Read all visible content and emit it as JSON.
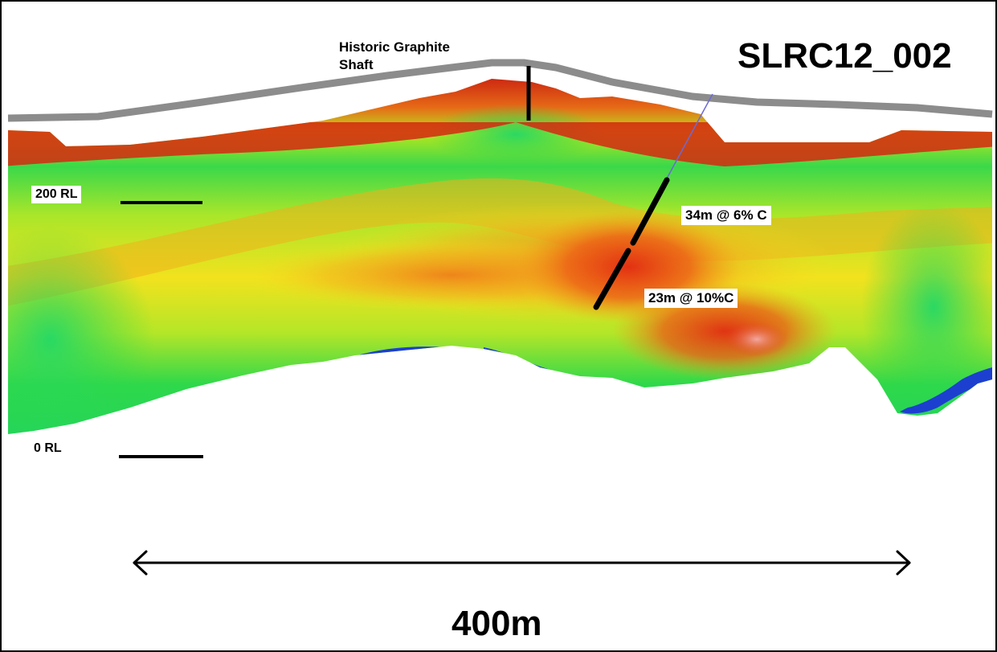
{
  "title": "SLRC12_002",
  "shaft_label_line1": "Historic Graphite",
  "shaft_label_line2": "Shaft",
  "level_labels": {
    "upper": "200 RL",
    "lower": "0 RL"
  },
  "intercepts": [
    {
      "label": "34m @ 6% C"
    },
    {
      "label": "23m @ 10%C"
    }
  ],
  "scale_bar_label": "400m",
  "colors": {
    "surface": "#8c8c8c",
    "high_grade": "#d42a10",
    "mid_high": "#f08a1a",
    "mid": "#f2e61e",
    "low": "#2ed84a",
    "very_low": "#1c3fd0",
    "drill_trace": "#000000"
  }
}
